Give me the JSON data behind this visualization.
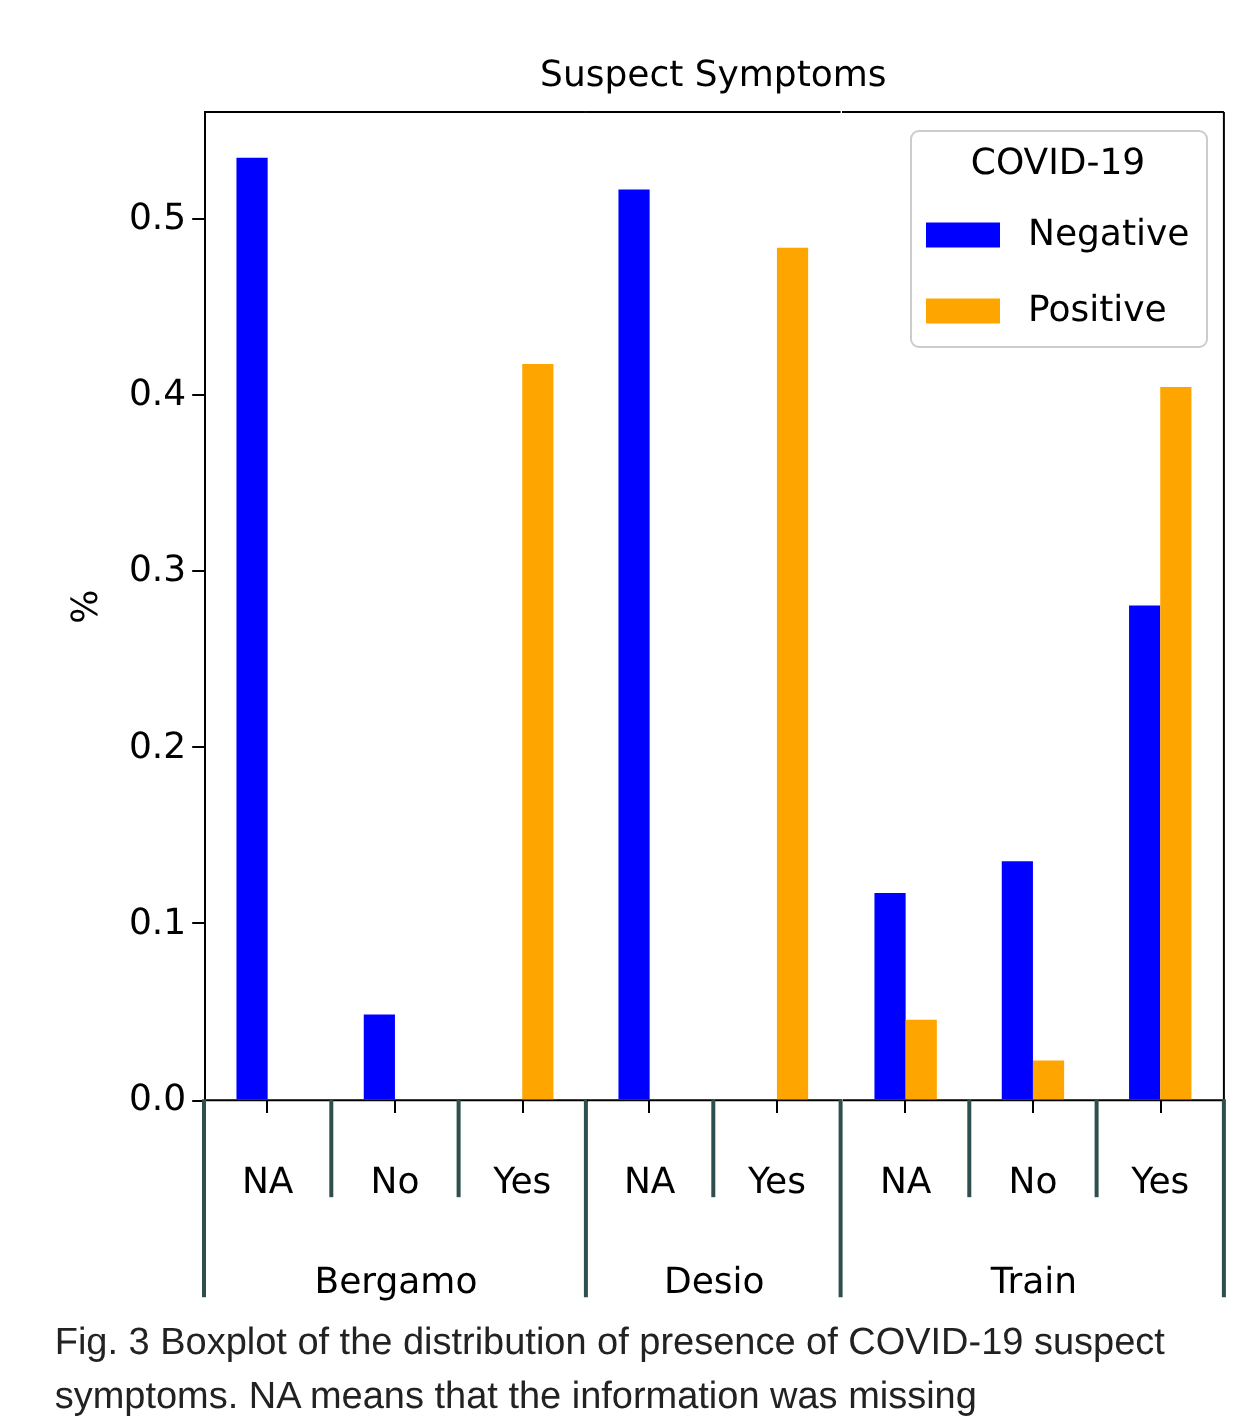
{
  "chart_data": [
    {
      "type": "bar",
      "ylabel": "%",
      "xlabel": "Bergamo",
      "categories": [
        "NA",
        "No",
        "Yes"
      ],
      "series": [
        {
          "color": "#0000ff",
          "values": [
            0.534,
            0.048,
            null
          ]
        },
        {
          "color": "#ffa500",
          "values": [
            null,
            null,
            0.417
          ]
        }
      ],
      "ylim": [
        0,
        0.56
      ],
      "yticks": [
        {
          "value": 0,
          "label": "0.0"
        },
        0.1,
        0.2,
        0.3,
        0.4,
        0.5
      ]
    },
    {
      "type": "bar",
      "title": "Suspect Symptoms",
      "xlabel": "Desio",
      "categories": [
        "NA",
        "Yes"
      ],
      "series": [
        {
          "color": "#0000ff",
          "values": [
            0.516,
            null
          ]
        },
        {
          "color": "#ffa500",
          "values": [
            null,
            0.483
          ]
        }
      ],
      "ylim": [
        0,
        0.56
      ],
      "tick_labels": "x"
    },
    {
      "type": "bar",
      "xlabel": "Train",
      "categories": [
        "NA",
        "No",
        "Yes"
      ],
      "series": [
        {
          "name": "Negative",
          "color": "#0000ff",
          "values": [
            0.117,
            0.135,
            0.28
          ]
        },
        {
          "name": "Positive",
          "color": "#ffa500",
          "values": [
            0.045,
            0.022,
            0.404
          ]
        }
      ],
      "ylim": [
        0,
        0.56
      ],
      "tick_labels": "x",
      "legend": "top right",
      "legend_title": "COVID-19",
      "annotations": [
        "Fig. 3 Boxplot of the distribution of presence of COVID-19 suspect symptoms. NA means that the information was missing"
      ]
    }
  ]
}
